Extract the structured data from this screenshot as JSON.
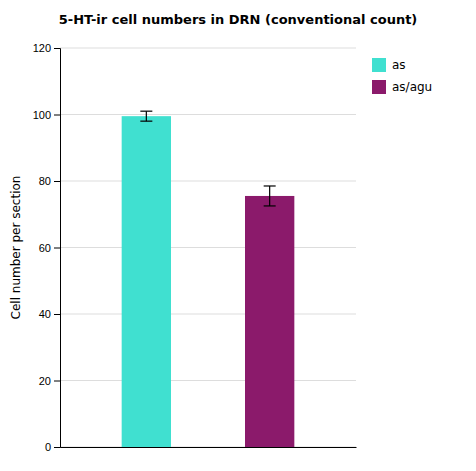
{
  "chart_data": {
    "type": "bar",
    "title": "5-HT-ir cell numbers in DRN (conventional count)",
    "ylabel": "Cell number per section",
    "categories": [
      "as",
      "as/agu"
    ],
    "values": [
      99.5,
      75.5
    ],
    "errors": [
      1.5,
      3.0
    ],
    "colors": [
      "#40E0D0",
      "#8B1A6B"
    ],
    "ylim": [
      0,
      120
    ],
    "yticks": [
      0,
      20,
      40,
      60,
      80,
      100,
      120
    ],
    "grid": true,
    "legend": "right",
    "tick_labels": "y"
  }
}
